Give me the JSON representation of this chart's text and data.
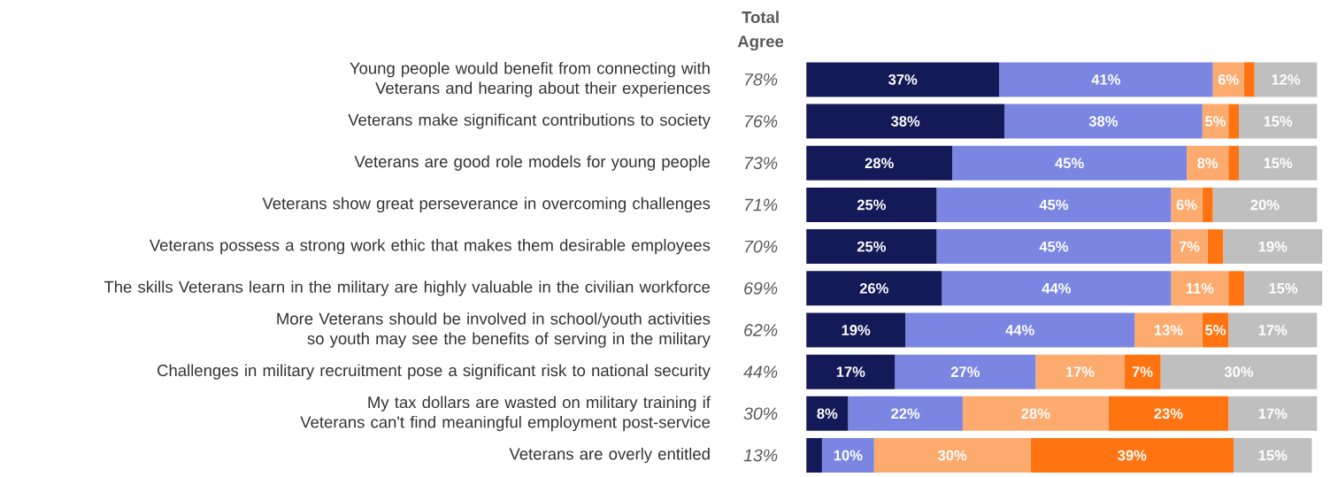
{
  "chart_data": {
    "type": "bar",
    "orientation": "horizontal",
    "stacked": true,
    "tick_labels": "y",
    "categories": [
      "Young people would benefit from connecting with Veterans and hearing about their experiences",
      "Veterans make significant contributions to society",
      "Veterans are good role models for young people",
      "Veterans show great perseverance in overcoming challenges",
      "Veterans possess a strong work ethic that makes them desirable employees",
      "The skills Veterans learn in the military are highly valuable in the civilian workforce",
      "More Veterans should be involved in school/youth activities so youth may see the benefits of serving in the military",
      "Challenges in military recruitment pose a significant risk to national security",
      "My tax dollars are wasted on military training if Veterans can't find meaningful employment post-service",
      "Veterans are overly entitled"
    ],
    "series": [
      {
        "color": "#141a57",
        "values": [
          37,
          38,
          28,
          25,
          25,
          26,
          19,
          17,
          8,
          3
        ],
        "value_labels": [
          "37%",
          "38%",
          "28%",
          "25%",
          "25%",
          "26%",
          "19%",
          "17%",
          "8%",
          null
        ]
      },
      {
        "color": "#7b86e2",
        "values": [
          41,
          38,
          45,
          45,
          45,
          44,
          44,
          27,
          22,
          10
        ],
        "value_labels": [
          "41%",
          "38%",
          "45%",
          "45%",
          "45%",
          "44%",
          "44%",
          "27%",
          "22%",
          "10%"
        ]
      },
      {
        "color": "#fdaa6e",
        "values": [
          6,
          5,
          8,
          6,
          7,
          11,
          13,
          17,
          28,
          30
        ],
        "value_labels": [
          "6%",
          "5%",
          "8%",
          "6%",
          "7%",
          "11%",
          "13%",
          "17%",
          "28%",
          "30%"
        ]
      },
      {
        "color": "#ff7410",
        "values": [
          2,
          2,
          2,
          2,
          3,
          3,
          5,
          7,
          23,
          39
        ],
        "value_labels": [
          null,
          null,
          null,
          null,
          null,
          null,
          "5%",
          "7%",
          "23%",
          "39%"
        ]
      },
      {
        "color": "#bfbfbf",
        "values": [
          12,
          15,
          15,
          20,
          19,
          15,
          17,
          30,
          17,
          15
        ],
        "value_labels": [
          "12%",
          "15%",
          "15%",
          "20%",
          "19%",
          "15%",
          "17%",
          "30%",
          "17%",
          "15%"
        ]
      }
    ],
    "annotations": [
      "Total Agree",
      "78%",
      "76%",
      "73%",
      "71%",
      "70%",
      "69%",
      "62%",
      "44%",
      "30%",
      "13%"
    ]
  }
}
